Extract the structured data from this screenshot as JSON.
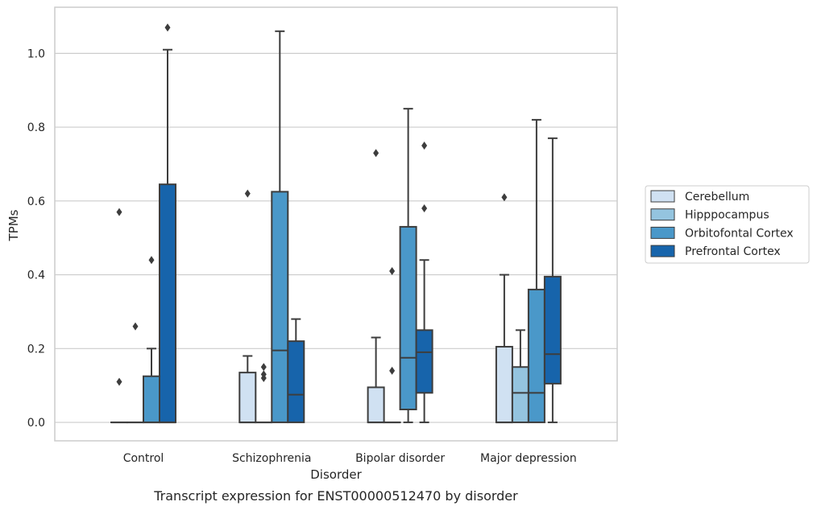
{
  "chart_data": {
    "type": "box",
    "title": "",
    "caption": "Transcript expression for ENST00000512470 by disorder",
    "xlabel": "Disorder",
    "ylabel": "TPMs",
    "ylim": [
      -0.05,
      1.125
    ],
    "yticks": [
      0.0,
      0.2,
      0.4,
      0.6,
      0.8,
      1.0
    ],
    "ytick_labels": [
      "0.0",
      "0.2",
      "0.4",
      "0.6",
      "0.8",
      "1.0"
    ],
    "grid": "horizontal",
    "legend_position": "right",
    "categories": [
      "Control",
      "Schizophrenia",
      "Bipolar disorder",
      "Major depression"
    ],
    "series": [
      {
        "name": "Cerebellum",
        "color": "#d0e1f2",
        "boxes": [
          {
            "min": 0,
            "q1": 0,
            "median": 0,
            "q3": 0,
            "max": 0,
            "outliers": [
              0.57,
              0.11
            ]
          },
          {
            "min": 0,
            "q1": 0,
            "median": 0,
            "q3": 0.135,
            "max": 0.18,
            "outliers": [
              0.62
            ]
          },
          {
            "min": 0,
            "q1": 0,
            "median": 0,
            "q3": 0.095,
            "max": 0.23,
            "outliers": [
              0.73
            ]
          },
          {
            "min": 0,
            "q1": 0,
            "median": 0,
            "q3": 0.205,
            "max": 0.4,
            "outliers": [
              0.61
            ]
          }
        ]
      },
      {
        "name": "Hipppocampus",
        "color": "#94c4df",
        "boxes": [
          {
            "min": 0,
            "q1": 0,
            "median": 0,
            "q3": 0,
            "max": 0,
            "outliers": [
              0.26
            ]
          },
          {
            "min": 0,
            "q1": 0,
            "median": 0,
            "q3": 0,
            "max": 0,
            "outliers": [
              0.15,
              0.13,
              0.12
            ]
          },
          {
            "min": 0,
            "q1": 0,
            "median": 0,
            "q3": 0,
            "max": 0,
            "outliers": [
              0.41,
              0.14
            ]
          },
          {
            "min": 0,
            "q1": 0,
            "median": 0.08,
            "q3": 0.15,
            "max": 0.25,
            "outliers": []
          }
        ]
      },
      {
        "name": "Orbitofontal Cortex",
        "color": "#4a98c9",
        "boxes": [
          {
            "min": 0,
            "q1": 0,
            "median": 0,
            "q3": 0.125,
            "max": 0.2,
            "outliers": [
              0.44
            ]
          },
          {
            "min": 0,
            "q1": 0,
            "median": 0.195,
            "q3": 0.625,
            "max": 1.06,
            "outliers": []
          },
          {
            "min": 0,
            "q1": 0.035,
            "median": 0.175,
            "q3": 0.53,
            "max": 0.85,
            "outliers": []
          },
          {
            "min": 0,
            "q1": 0,
            "median": 0.08,
            "q3": 0.36,
            "max": 0.82,
            "outliers": []
          }
        ]
      },
      {
        "name": "Prefrontal Cortex",
        "color": "#1764ab",
        "boxes": [
          {
            "min": 0,
            "q1": 0,
            "median": 0,
            "q3": 0.645,
            "max": 1.01,
            "outliers": [
              1.07
            ]
          },
          {
            "min": 0,
            "q1": 0,
            "median": 0.075,
            "q3": 0.22,
            "max": 0.28,
            "outliers": []
          },
          {
            "min": 0,
            "q1": 0.08,
            "median": 0.19,
            "q3": 0.25,
            "max": 0.44,
            "outliers": [
              0.75,
              0.58
            ]
          },
          {
            "min": 0,
            "q1": 0.105,
            "median": 0.185,
            "q3": 0.395,
            "max": 0.77,
            "outliers": []
          }
        ]
      }
    ]
  }
}
